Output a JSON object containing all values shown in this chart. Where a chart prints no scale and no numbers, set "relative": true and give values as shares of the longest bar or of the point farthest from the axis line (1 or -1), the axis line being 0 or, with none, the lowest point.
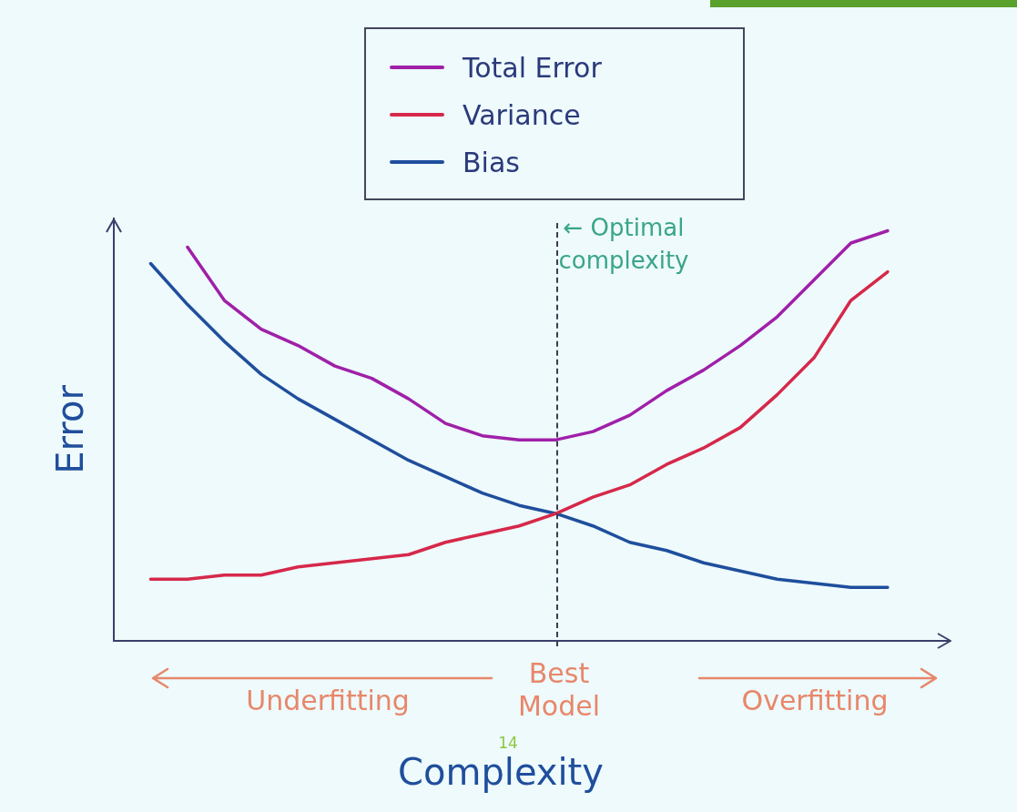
{
  "chart_data": {
    "type": "line",
    "relative": true,
    "xlabel": "Complexity",
    "ylabel": "Error",
    "legend": "top",
    "marker": "none",
    "line_style": "solid",
    "categories": [
      null,
      null,
      null,
      null,
      null,
      null,
      null,
      null,
      null,
      null,
      null,
      null,
      null,
      null,
      null,
      null,
      null,
      null,
      null,
      null,
      null,
      null
    ],
    "series": [
      {
        "name": "Total Error",
        "color": "#a020a8",
        "values": [
          null,
          null,
          0.96,
          0.83,
          0.76,
          0.72,
          0.67,
          0.64,
          0.59,
          0.53,
          0.5,
          0.49,
          0.49,
          0.51,
          0.55,
          0.61,
          0.66,
          0.72,
          0.79,
          0.88,
          0.97,
          1.0
        ]
      },
      {
        "name": "Variance",
        "color": "#d6284a",
        "values": [
          null,
          0.15,
          0.15,
          0.16,
          0.16,
          0.18,
          0.19,
          0.2,
          0.21,
          0.24,
          0.26,
          0.28,
          0.31,
          0.35,
          0.38,
          0.43,
          0.47,
          0.52,
          0.6,
          0.69,
          0.83,
          0.9
        ]
      },
      {
        "name": "Bias",
        "color": "#1f4e9c",
        "values": [
          null,
          0.92,
          0.82,
          0.73,
          0.65,
          0.59,
          0.54,
          0.49,
          0.44,
          0.4,
          0.36,
          0.33,
          0.31,
          0.28,
          0.24,
          0.22,
          0.19,
          0.17,
          0.15,
          0.14,
          0.13,
          0.13
        ]
      }
    ],
    "annotations": [
      "← Optimal complexity",
      "Underfitting",
      "Best Model",
      "Overfitting",
      "14"
    ]
  }
}
